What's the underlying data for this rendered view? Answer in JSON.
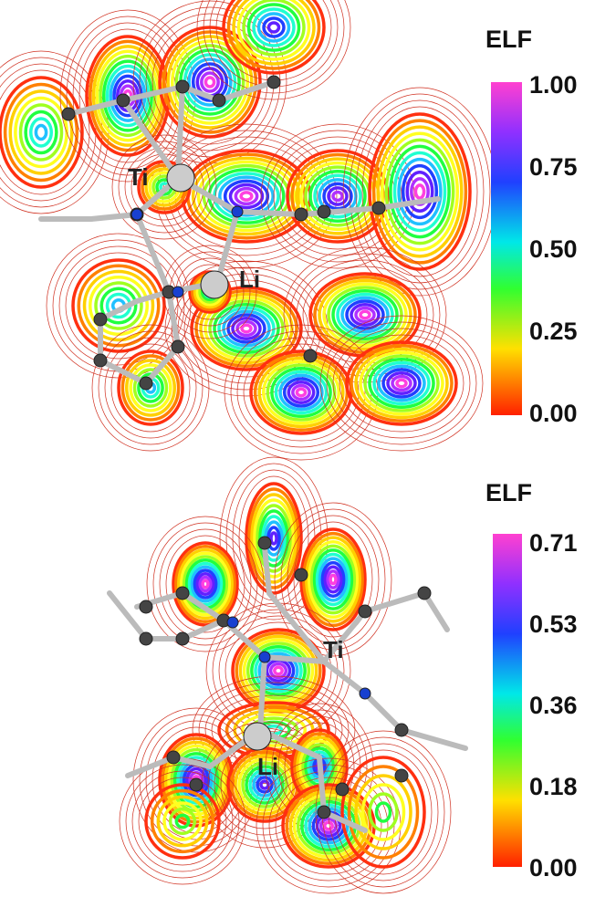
{
  "panels": [
    {
      "colorbar": {
        "title": "ELF",
        "labels": [
          "1.00",
          "0.75",
          "0.50",
          "0.25",
          "0.00"
        ]
      },
      "atoms": [
        "Ti",
        "Li"
      ]
    },
    {
      "colorbar": {
        "title": "ELF",
        "labels": [
          "0.71",
          "0.53",
          "0.36",
          "0.18",
          "0.00"
        ]
      },
      "atoms": [
        "Ti",
        "Li"
      ]
    }
  ]
}
